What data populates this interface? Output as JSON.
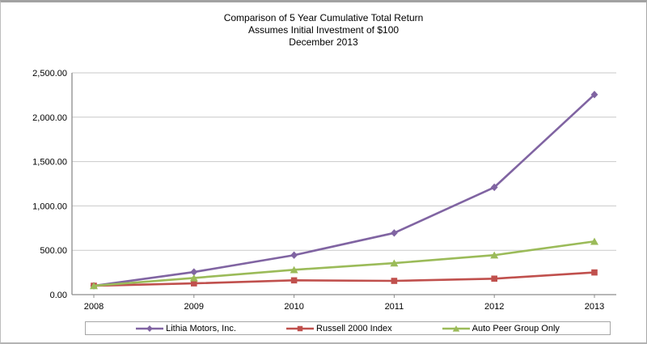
{
  "title": {
    "line1": "Comparison of 5 Year Cumulative Total Return",
    "line2": "Assumes Initial Investment of $100",
    "line3": "December 2013"
  },
  "chart_data": {
    "type": "line",
    "title": "Comparison of 5 Year Cumulative Total Return",
    "subtitle": "Assumes Initial Investment of $100",
    "subtitle2": "December 2013",
    "x": [
      "2008",
      "2009",
      "2010",
      "2011",
      "2012",
      "2013"
    ],
    "series": [
      {
        "name": "Lithia Motors, Inc.",
        "color": "#8064A2",
        "marker": "diamond",
        "values": [
          100,
          255,
          445,
          695,
          1210,
          2255
        ]
      },
      {
        "name": "Russell 2000 Index",
        "color": "#C0504D",
        "marker": "square",
        "values": [
          100,
          127,
          161,
          155,
          180,
          250
        ]
      },
      {
        "name": "Auto Peer Group Only",
        "color": "#9BBB59",
        "marker": "triangle",
        "values": [
          100,
          188,
          280,
          355,
          445,
          600
        ]
      }
    ],
    "xlabel": "",
    "ylabel": "",
    "ylim": [
      0,
      2500
    ],
    "ytick_step": 500,
    "ytick_labels": [
      "0.00",
      "500.00",
      "1,000.00",
      "1,500.00",
      "2,000.00",
      "2,500.00"
    ],
    "grid": true,
    "legend_position": "bottom",
    "axis_color": "#8C8C8C",
    "grid_color": "#C9C9C9",
    "marker_glyphs": {
      "diamond": "♦",
      "square": "■",
      "triangle": "▲"
    }
  }
}
